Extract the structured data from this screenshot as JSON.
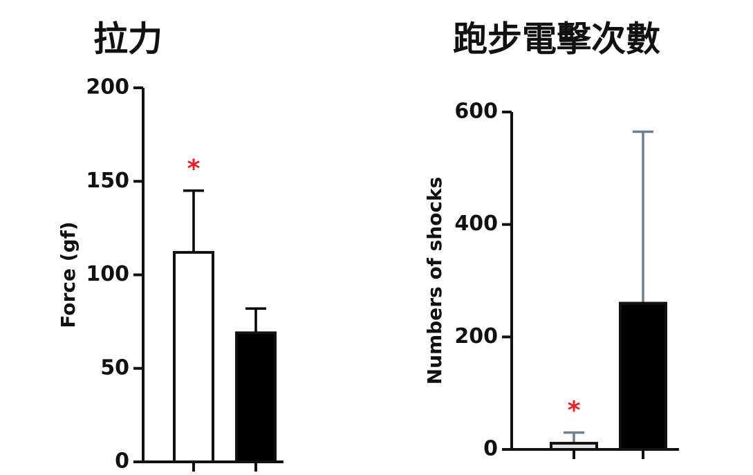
{
  "chart_data": [
    {
      "type": "bar",
      "title": "拉力",
      "ylabel": "Force (gf)",
      "categories": [
        null,
        null
      ],
      "values": [
        112,
        69
      ],
      "errors": [
        33,
        13
      ],
      "colors": [
        "#ffffff",
        "#000000"
      ],
      "error_color": "#000000",
      "value_annotations": [
        "*",
        null
      ],
      "ylim": [
        0,
        200
      ],
      "yticks": [
        0,
        50,
        100,
        150,
        200
      ]
    },
    {
      "type": "bar",
      "title": "跑步電擊次數",
      "ylabel": "Numbers of shocks",
      "categories": [
        null,
        null
      ],
      "values": [
        11,
        260
      ],
      "errors": [
        19,
        305
      ],
      "colors": [
        "#dfe6e8",
        "#000000"
      ],
      "error_color": "#6f8088",
      "value_annotations": [
        "*",
        null
      ],
      "ylim": [
        0,
        600
      ],
      "yticks": [
        0,
        200,
        400,
        600
      ]
    }
  ]
}
